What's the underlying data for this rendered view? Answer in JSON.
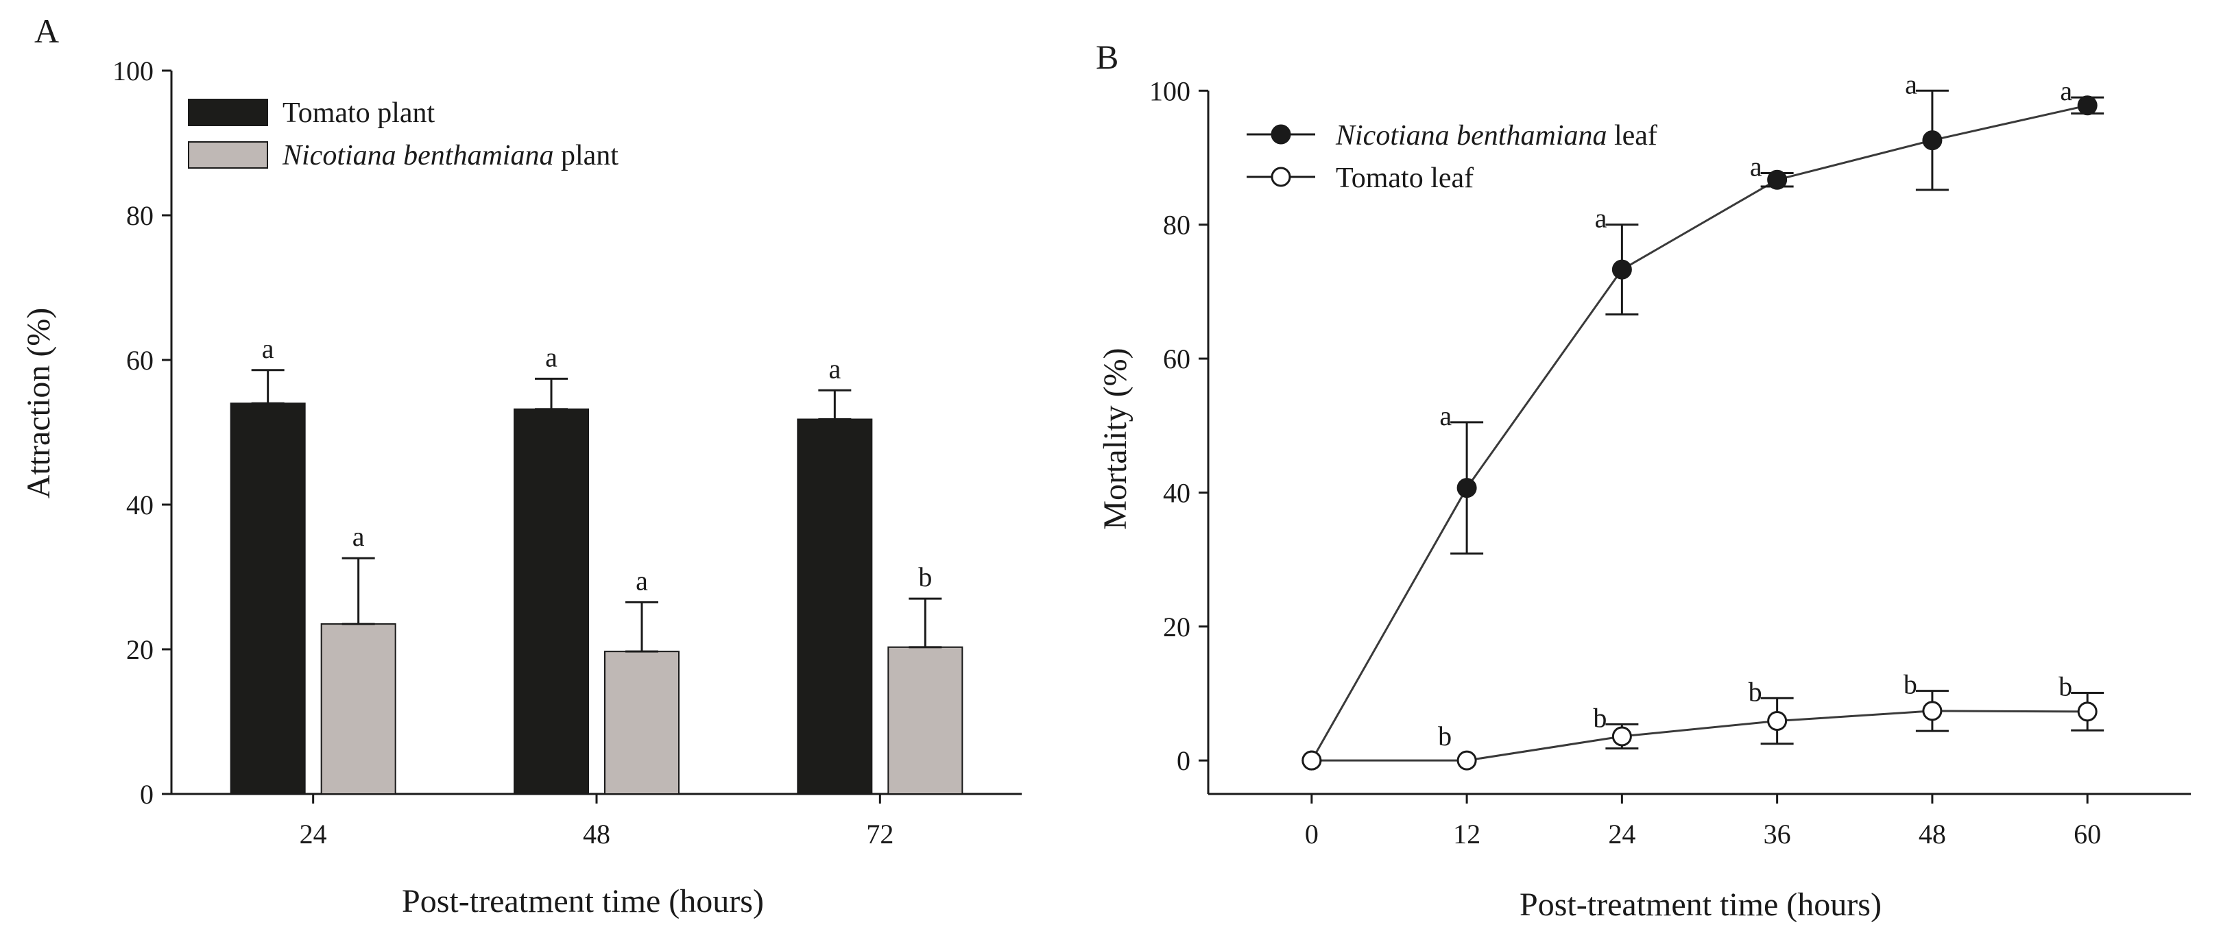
{
  "chart_data": [
    {
      "panel": "A",
      "type": "bar",
      "categories": [
        "24",
        "48",
        "72"
      ],
      "ylabel": "Attraction (%)",
      "xlabel": "Post-treatment time (hours)",
      "ylim": [
        0,
        100
      ],
      "yticks": [
        0,
        20,
        40,
        60,
        80,
        100
      ],
      "legend_position": "top-left",
      "series": [
        {
          "name": "Tomato plant",
          "name_italic": "",
          "name_suffix": "Tomato plant",
          "color": "#1c1c1a",
          "values": [
            54,
            53.2,
            51.8
          ],
          "errors": [
            4.6,
            4.2,
            4.0
          ],
          "letters": [
            "a",
            "a",
            "a"
          ]
        },
        {
          "name": "Nicotiana benthamiana plant",
          "name_italic": "Nicotiana benthamiana",
          "name_suffix": " plant",
          "color": "#bfb8b5",
          "values": [
            23.5,
            19.7,
            20.3
          ],
          "errors": [
            9.1,
            6.8,
            6.7
          ],
          "letters": [
            "a",
            "a",
            "b"
          ]
        }
      ]
    },
    {
      "panel": "B",
      "type": "line",
      "x": [
        0,
        12,
        24,
        36,
        48,
        60
      ],
      "xticks": [
        "0",
        "12",
        "24",
        "36",
        "48",
        "60"
      ],
      "ylabel": "Mortality (%)",
      "xlabel": "Post-treatment time (hours)",
      "xlim": [
        -8,
        68
      ],
      "ylim": [
        -5,
        103
      ],
      "yticks": [
        0,
        20,
        40,
        60,
        80,
        100
      ],
      "legend_position": "top-left",
      "series": [
        {
          "name": "Nicotiana benthamiana leaf",
          "name_italic": "Nicotiana benthamiana",
          "name_suffix": " leaf",
          "marker": "filled",
          "values": [
            0,
            40.7,
            73.3,
            86.7,
            92.6,
            97.8
          ],
          "errors": [
            0,
            9.8,
            6.7,
            1.0,
            7.4,
            1.2
          ],
          "letters": [
            "",
            "a",
            "a",
            "a",
            "a",
            "a"
          ]
        },
        {
          "name": "Tomato leaf",
          "name_italic": "",
          "name_suffix": "Tomato leaf",
          "marker": "open",
          "values": [
            0,
            0,
            3.6,
            5.9,
            7.4,
            7.3
          ],
          "errors": [
            0,
            0,
            1.8,
            3.4,
            3.0,
            2.8
          ],
          "letters": [
            "",
            "b",
            "b",
            "b",
            "b",
            "b"
          ]
        }
      ]
    }
  ]
}
